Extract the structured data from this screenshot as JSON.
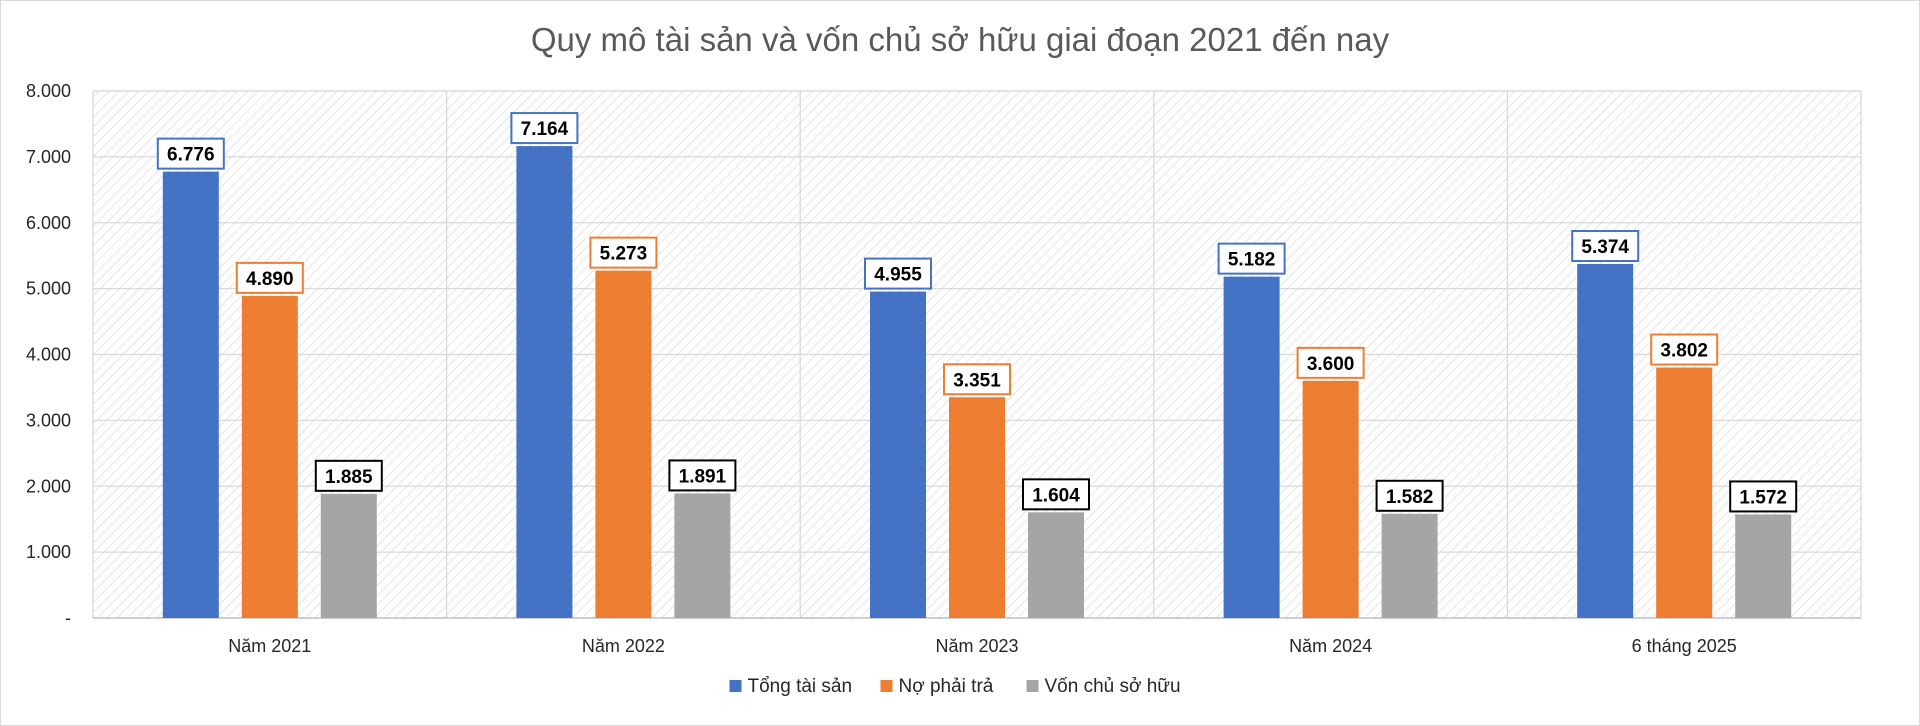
{
  "chart_data": {
    "type": "bar",
    "title": "Quy mô tài sản và vốn chủ sở hữu giai đoạn 2021 đến nay",
    "categories": [
      "Năm 2021",
      "Năm 2022",
      "Năm 2023",
      "Năm 2024",
      "6 tháng 2025"
    ],
    "series": [
      {
        "name": "Tổng tài sản",
        "color": "#4472C4",
        "values": [
          6776,
          7164,
          4955,
          5182,
          5374
        ],
        "labels": [
          "6.776",
          "7.164",
          "4.955",
          "5.182",
          "5.374"
        ]
      },
      {
        "name": "Nợ phải trả",
        "color": "#ED7D31",
        "values": [
          4890,
          5273,
          3351,
          3600,
          3802
        ],
        "labels": [
          "4.890",
          "5.273",
          "3.351",
          "3.600",
          "3.802"
        ]
      },
      {
        "name": "Vốn chủ sở hữu",
        "color": "#A5A5A5",
        "label_border_color": "#000000",
        "values": [
          1885,
          1891,
          1604,
          1582,
          1572
        ],
        "labels": [
          "1.885",
          "1.891",
          "1.604",
          "1.582",
          "1.572"
        ]
      }
    ],
    "ylim": [
      0,
      8000
    ],
    "yticks": [
      0,
      1000,
      2000,
      3000,
      4000,
      5000,
      6000,
      7000,
      8000
    ],
    "ytick_labels": [
      "-",
      "1.000",
      "2.000",
      "3.000",
      "4.000",
      "5.000",
      "6.000",
      "7.000",
      "8.000"
    ],
    "grid": true,
    "plot_background": "diagonal-hatch",
    "legend": "bottom-center"
  }
}
